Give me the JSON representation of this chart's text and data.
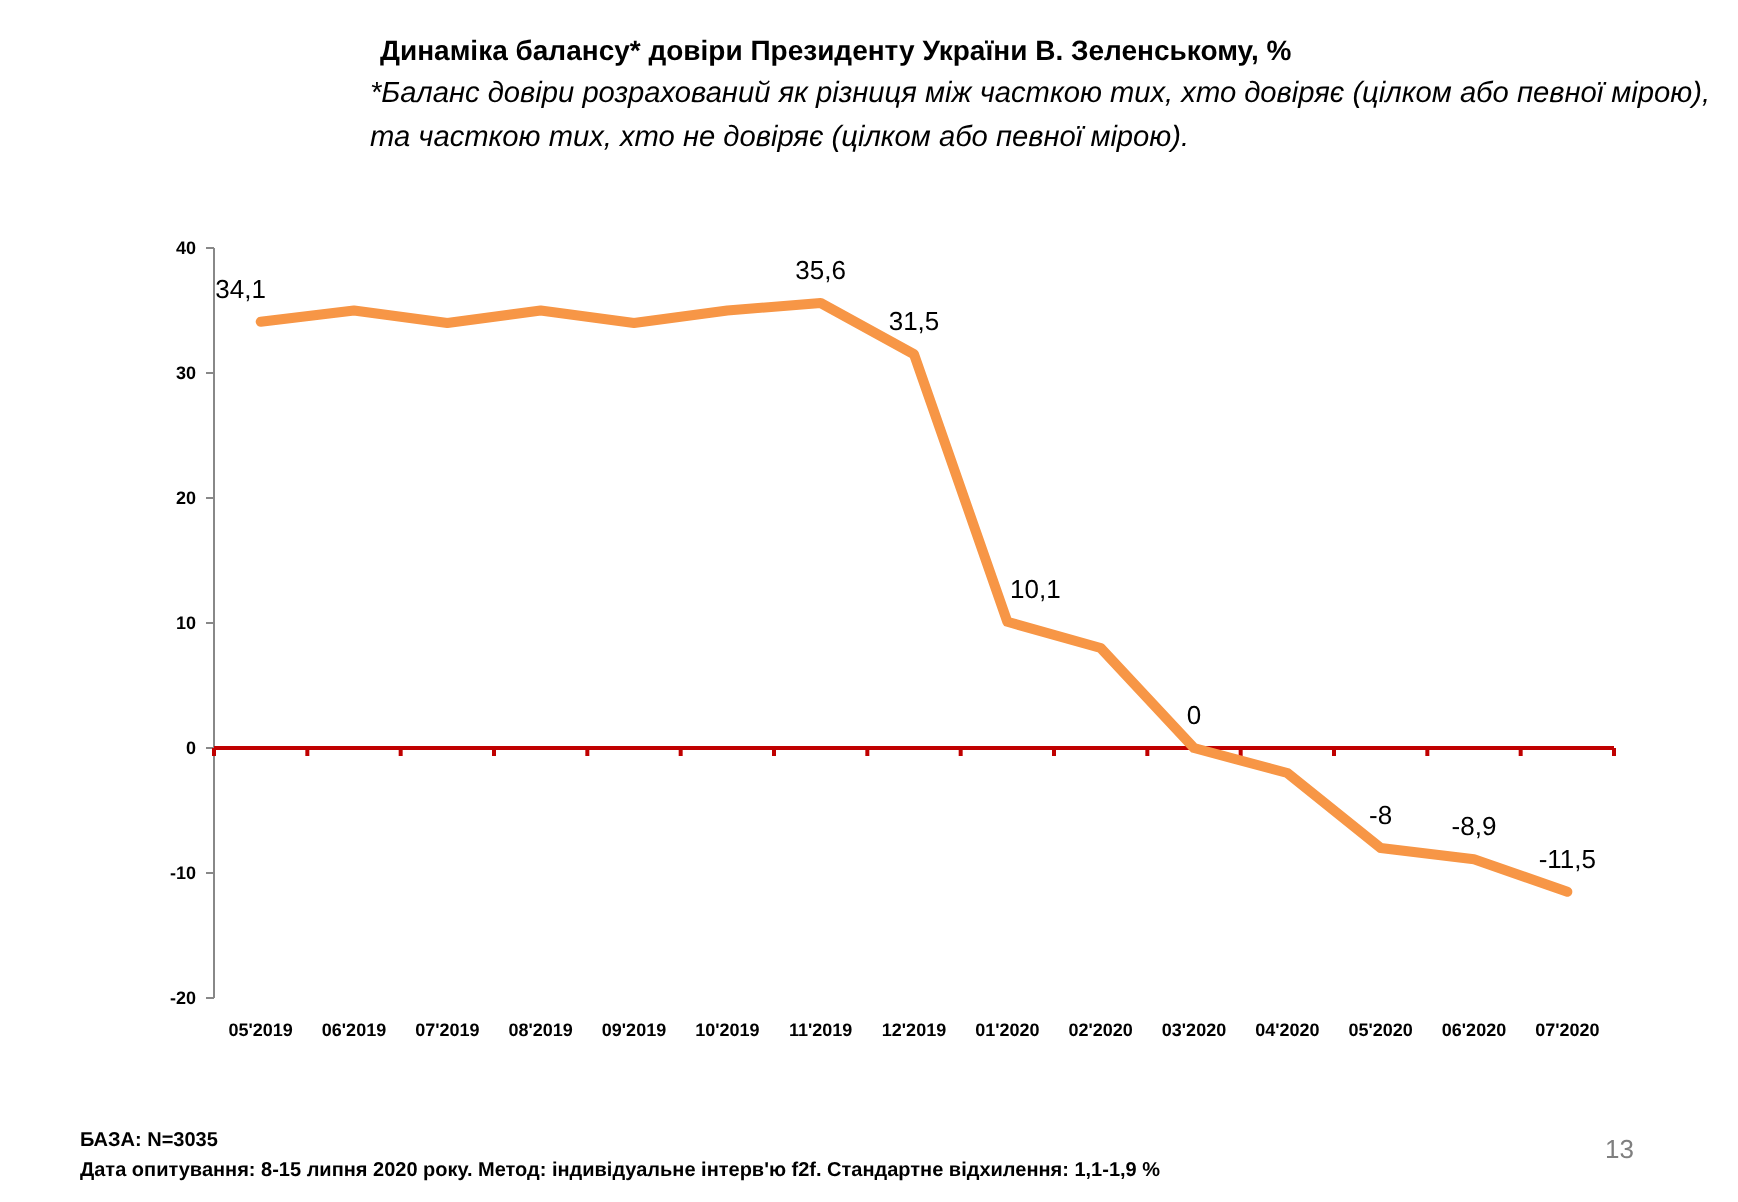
{
  "chart_data": {
    "type": "line",
    "title": "Динаміка балансу* довіри Президенту України В. Зеленському, %",
    "subtitle": "*Баланс довіри розрахований як різниця між часткою тих, хто довіряє (цілком або певної мірою), та часткою тих, хто не довіряє (цілком або певної мірою).",
    "categories": [
      "05'2019",
      "06'2019",
      "07'2019",
      "08'2019",
      "09'2019",
      "10'2019",
      "11'2019",
      "12'2019",
      "01'2020",
      "02'2020",
      "03'2020",
      "04'2020",
      "05'2020",
      "06'2020",
      "07'2020"
    ],
    "series": [
      {
        "color": "#f79646",
        "values": [
          34.1,
          35,
          34,
          35,
          34,
          35,
          35.6,
          31.5,
          10.1,
          8,
          0,
          -2,
          -8,
          -8.9,
          -11.5
        ],
        "value_labels": [
          "34,1",
          null,
          null,
          null,
          null,
          null,
          "35,6",
          "31,5",
          "10,1",
          null,
          "0",
          null,
          "-8",
          "-8,9",
          "-11,5"
        ]
      }
    ],
    "ylim": [
      -20,
      40
    ],
    "yticks": [
      -20,
      -10,
      0,
      10,
      20,
      30,
      40
    ],
    "grid": false,
    "marker": "none",
    "line_style": "solid",
    "ref_lines": [
      {
        "axis": "y",
        "value": 0,
        "color": "#c00000"
      }
    ],
    "annotations": [
      "БАЗА: N=3035",
      "Дата опитування: 8-15 липня  2020 року. Метод: індивідуальне інтерв'ю f2f. Стандартне відхилення: 1,1-1,9 %",
      "13"
    ]
  }
}
